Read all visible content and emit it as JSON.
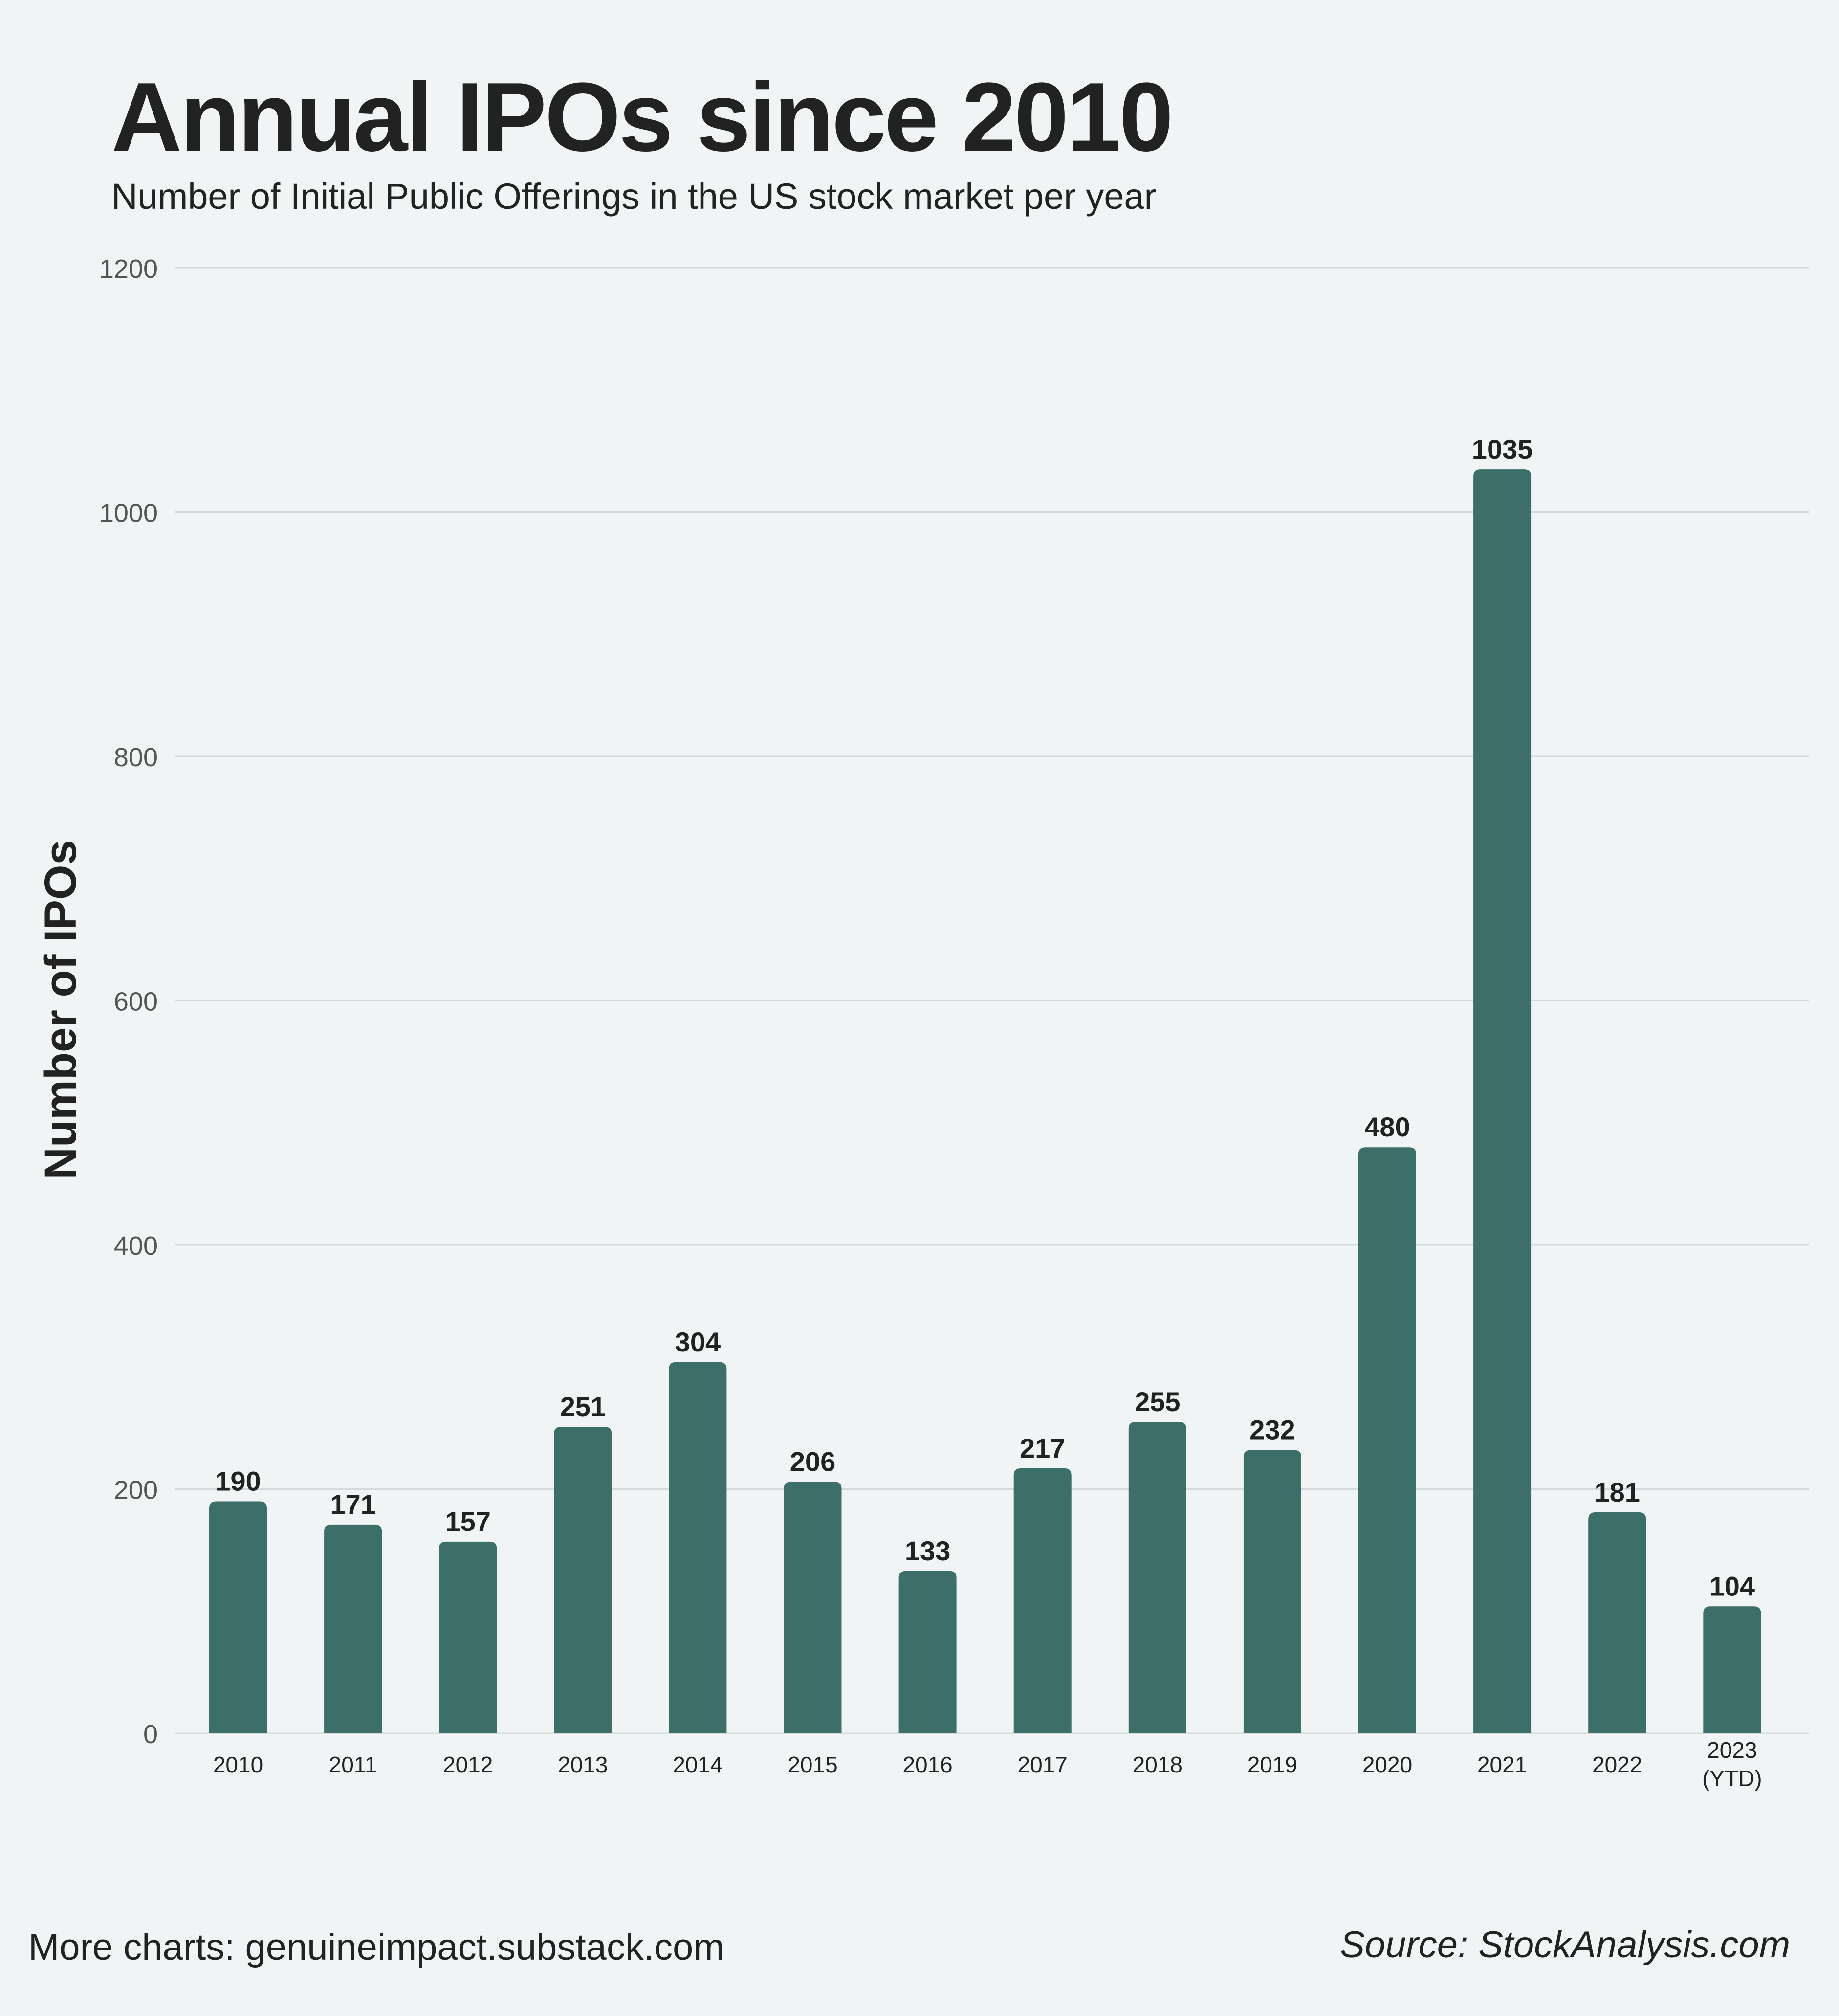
{
  "header": {
    "title": "Annual IPOs since 2010",
    "subtitle": "Number of Initial Public Offerings in the US stock market per year"
  },
  "footer": {
    "left": "More charts: genuineimpact.substack.com",
    "right": "Source: StockAnalysis.com"
  },
  "colors": {
    "bar": "#3c6e6a",
    "grid": "#d5dadc",
    "background": "#f0f4f5",
    "text": "#222222",
    "tick_text": "#555555"
  },
  "chart_data": {
    "type": "bar",
    "title": "Annual IPOs since 2010",
    "subtitle": "Number of Initial Public Offerings in the US stock market per year",
    "xlabel": "",
    "ylabel": "Number of IPOs",
    "ylim": [
      0,
      1200
    ],
    "yticks": [
      0,
      200,
      400,
      600,
      800,
      1000,
      1200
    ],
    "grid": true,
    "legend": "none",
    "categories": [
      "2010",
      "2011",
      "2012",
      "2013",
      "2014",
      "2015",
      "2016",
      "2017",
      "2018",
      "2019",
      "2020",
      "2021",
      "2022",
      "2023\n(YTD)"
    ],
    "values": [
      190,
      171,
      157,
      251,
      304,
      206,
      133,
      217,
      255,
      232,
      480,
      1035,
      181,
      104
    ],
    "data_labels": [
      "190",
      "171",
      "157",
      "251",
      "304",
      "206",
      "133",
      "217",
      "255",
      "232",
      "480",
      "1035",
      "181",
      "104"
    ]
  }
}
